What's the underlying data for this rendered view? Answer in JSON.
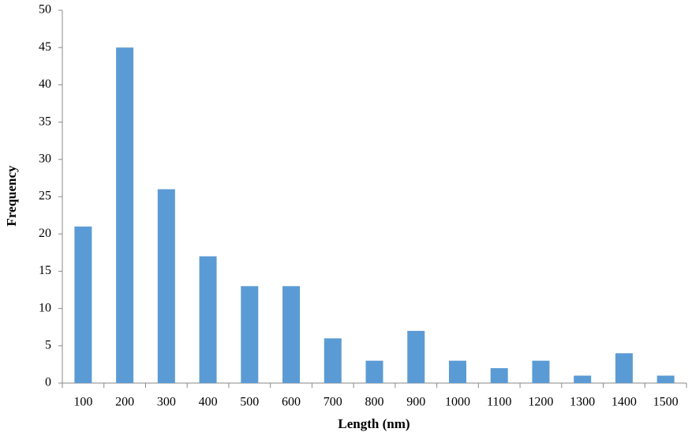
{
  "chart_data": {
    "type": "bar",
    "x_label": "Length (nm)",
    "y_label": "Frequency",
    "categories": [
      "100",
      "200",
      "300",
      "400",
      "500",
      "600",
      "700",
      "800",
      "900",
      "1000",
      "1100",
      "1200",
      "1300",
      "1400",
      "1500"
    ],
    "values": [
      21,
      45,
      26,
      17,
      13,
      13,
      6,
      3,
      7,
      3,
      2,
      3,
      1,
      4,
      1
    ],
    "color": "#5b9bd5",
    "ylim": [
      0,
      50
    ],
    "yticks": [
      0,
      5,
      10,
      15,
      20,
      25,
      30,
      35,
      40,
      45,
      50
    ],
    "grid": false
  }
}
